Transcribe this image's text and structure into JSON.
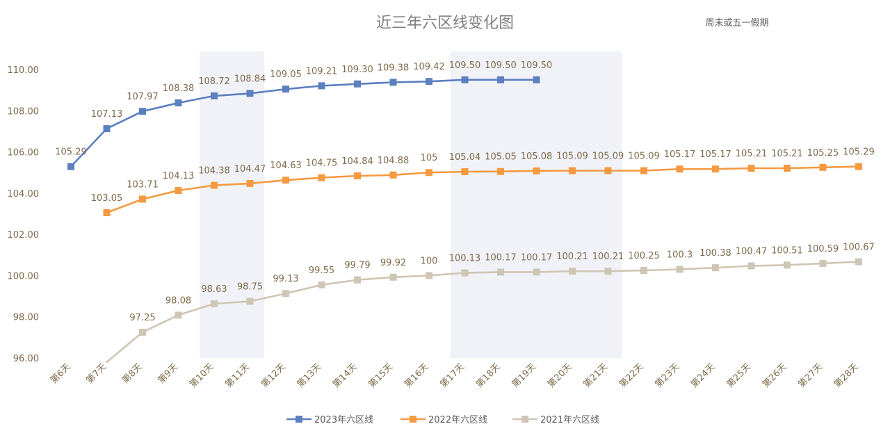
{
  "chart_data": {
    "type": "line",
    "title": "近三年六区线变化图",
    "annotation": "周末或五一假期",
    "categories": [
      "第6天",
      "第7天",
      "第8天",
      "第9天",
      "第10天",
      "第11天",
      "第12天",
      "第13天",
      "第14天",
      "第15天",
      "第16天",
      "第17天",
      "第18天",
      "第19天",
      "第20天",
      "第21天",
      "第22天",
      "第23天",
      "第24天",
      "第25天",
      "第26天",
      "第27天",
      "第28天"
    ],
    "ylim": [
      96,
      110
    ],
    "yticks": [
      "96.00",
      "98.00",
      "100.00",
      "102.00",
      "104.00",
      "106.00",
      "108.00",
      "110.00"
    ],
    "grid": false,
    "legend_position": "bottom",
    "highlight_bands": [
      {
        "from": "第10天",
        "to": "第11天"
      },
      {
        "from": "第17天",
        "to": "第21天"
      }
    ],
    "series": [
      {
        "name": "2023年六区线",
        "color": "#5b7fbf",
        "values": [
          105.29,
          107.13,
          107.97,
          108.38,
          108.72,
          108.84,
          109.05,
          109.21,
          109.3,
          109.38,
          109.42,
          109.5,
          109.5,
          109.5,
          null,
          null,
          null,
          null,
          null,
          null,
          null,
          null,
          null
        ],
        "labels": [
          "105.29",
          "107.13",
          "107.97",
          "108.38",
          "108.72",
          "108.84",
          "109.05",
          "109.21",
          "109.30",
          "109.38",
          "109.42",
          "109.50",
          "109.50",
          "109.50",
          null,
          null,
          null,
          null,
          null,
          null,
          null,
          null,
          null
        ]
      },
      {
        "name": "2022年六区线",
        "color": "#f59a40",
        "values": [
          null,
          103.05,
          103.71,
          104.13,
          104.38,
          104.47,
          104.63,
          104.75,
          104.84,
          104.88,
          105,
          105.04,
          105.05,
          105.08,
          105.09,
          105.09,
          105.09,
          105.17,
          105.17,
          105.21,
          105.21,
          105.25,
          105.29
        ],
        "labels": [
          null,
          "103.05",
          "103.71",
          "104.13",
          "104.38",
          "104.47",
          "104.63",
          "104.75",
          "104.84",
          "104.88",
          "105",
          "105.04",
          "105.05",
          "105.08",
          "105.09",
          "105.09",
          "105.09",
          "105.17",
          "105.17",
          "105.21",
          "105.21",
          "105.25",
          "105.29"
        ]
      },
      {
        "name": "2021年六区线",
        "color": "#cfc5b4",
        "values": [
          null,
          95.8,
          97.25,
          98.08,
          98.63,
          98.75,
          99.13,
          99.55,
          99.79,
          99.92,
          100,
          100.13,
          100.17,
          100.17,
          100.21,
          100.21,
          100.25,
          100.3,
          100.38,
          100.47,
          100.51,
          100.59,
          100.67
        ],
        "labels": [
          null,
          null,
          "97.25",
          "98.08",
          "98.63",
          "98.75",
          "99.13",
          "99.55",
          "99.79",
          "99.92",
          "100",
          "100.13",
          "100.17",
          "100.17",
          "100.21",
          "100.21",
          "100.25",
          "100.3",
          "100.38",
          "100.47",
          "100.51",
          "100.59",
          "100.67"
        ]
      }
    ]
  }
}
